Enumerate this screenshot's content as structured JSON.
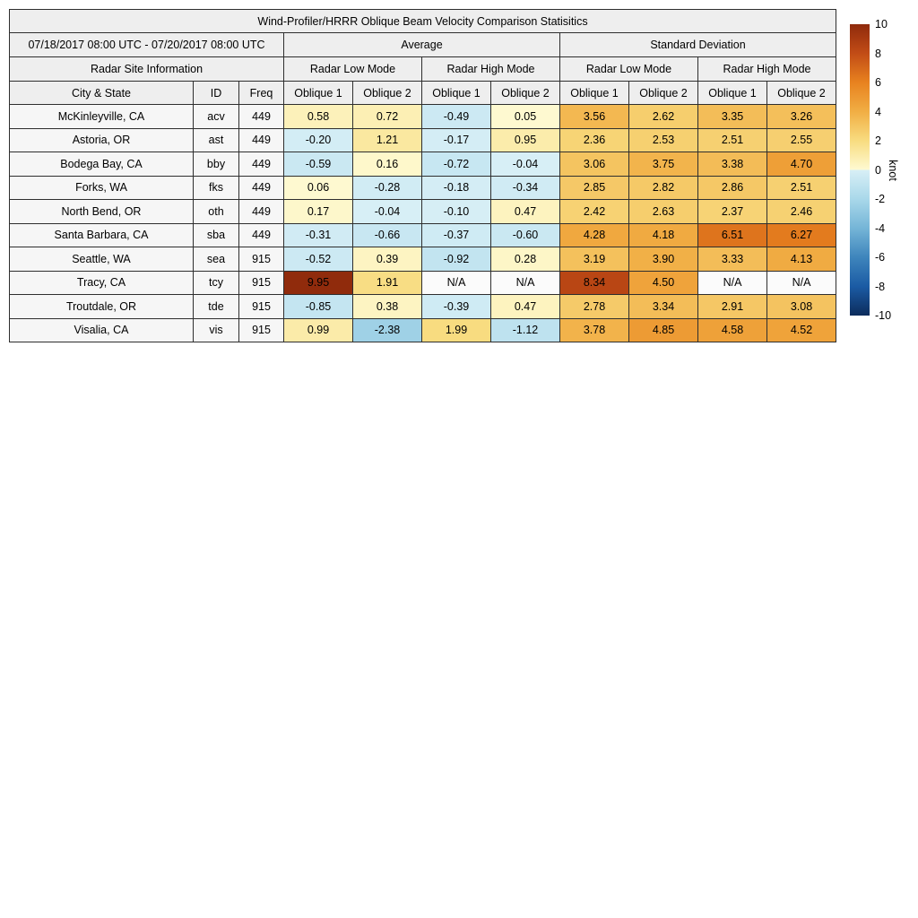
{
  "figure": {
    "background": "#ffffff",
    "grid_color": "#2e2e2e",
    "header_background": "#eeeeee",
    "label_background": "#f6f6f6"
  },
  "chart_data": {
    "type": "table",
    "title": "Wind-Profiler/HRRR Oblique Beam Velocity Comparison Statisitics",
    "date_range": "07/18/2017 08:00 UTC - 07/20/2017 08:00 UTC",
    "section_headers": {
      "site_info": "Radar Site Information",
      "average": "Average",
      "std_dev": "Standard Deviation"
    },
    "mode_headers": [
      "Radar Low Mode",
      "Radar High Mode",
      "Radar Low Mode",
      "Radar High Mode"
    ],
    "column_headers": [
      "City & State",
      "ID",
      "Freq",
      "Oblique 1",
      "Oblique 2",
      "Oblique 1",
      "Oblique 2",
      "Oblique 1",
      "Oblique 2",
      "Oblique 1",
      "Oblique 2"
    ],
    "rows": [
      {
        "city": "McKinleyville, CA",
        "id": "acv",
        "freq": "449",
        "values": [
          "0.58",
          "0.72",
          "-0.49",
          "0.05",
          "3.56",
          "2.62",
          "3.35",
          "3.26"
        ]
      },
      {
        "city": "Astoria, OR",
        "id": "ast",
        "freq": "449",
        "values": [
          "-0.20",
          "1.21",
          "-0.17",
          "0.95",
          "2.36",
          "2.53",
          "2.51",
          "2.55"
        ]
      },
      {
        "city": "Bodega Bay, CA",
        "id": "bby",
        "freq": "449",
        "values": [
          "-0.59",
          "0.16",
          "-0.72",
          "-0.04",
          "3.06",
          "3.75",
          "3.38",
          "4.70"
        ]
      },
      {
        "city": "Forks, WA",
        "id": "fks",
        "freq": "449",
        "values": [
          "0.06",
          "-0.28",
          "-0.18",
          "-0.34",
          "2.85",
          "2.82",
          "2.86",
          "2.51"
        ]
      },
      {
        "city": "North Bend, OR",
        "id": "oth",
        "freq": "449",
        "values": [
          "0.17",
          "-0.04",
          "-0.10",
          "0.47",
          "2.42",
          "2.63",
          "2.37",
          "2.46"
        ]
      },
      {
        "city": "Santa Barbara, CA",
        "id": "sba",
        "freq": "449",
        "values": [
          "-0.31",
          "-0.66",
          "-0.37",
          "-0.60",
          "4.28",
          "4.18",
          "6.51",
          "6.27"
        ]
      },
      {
        "city": "Seattle, WA",
        "id": "sea",
        "freq": "915",
        "values": [
          "-0.52",
          "0.39",
          "-0.92",
          "0.28",
          "3.19",
          "3.90",
          "3.33",
          "4.13"
        ]
      },
      {
        "city": "Tracy, CA",
        "id": "tcy",
        "freq": "915",
        "values": [
          "9.95",
          "1.91",
          "N/A",
          "N/A",
          "8.34",
          "4.50",
          "N/A",
          "N/A"
        ]
      },
      {
        "city": "Troutdale, OR",
        "id": "tde",
        "freq": "915",
        "values": [
          "-0.85",
          "0.38",
          "-0.39",
          "0.47",
          "2.78",
          "3.34",
          "2.91",
          "3.08"
        ]
      },
      {
        "city": "Visalia, CA",
        "id": "vis",
        "freq": "915",
        "values": [
          "0.99",
          "-2.38",
          "1.99",
          "-1.12",
          "3.78",
          "4.85",
          "4.58",
          "4.52"
        ]
      }
    ],
    "na_text": "N/A",
    "colorbar": {
      "label": "knot",
      "ticks": [
        "10",
        "8",
        "6",
        "4",
        "2",
        "0",
        "-2",
        "-4",
        "-6",
        "-8",
        "-10"
      ],
      "max": 10,
      "min": -10
    }
  },
  "colormap": {
    "na_background": "#fbfbfb",
    "warm": [
      [
        0,
        "#FEFAD2"
      ],
      [
        2,
        "#F8DC80"
      ],
      [
        4,
        "#F1AE44"
      ],
      [
        6,
        "#E8821F"
      ],
      [
        8,
        "#C24C16"
      ],
      [
        10,
        "#8F2A0C"
      ]
    ],
    "cool": [
      [
        -10,
        "#0C2C5C"
      ],
      [
        -8,
        "#1B5BA4"
      ],
      [
        -6,
        "#3E85BC"
      ],
      [
        -4,
        "#75B5D7"
      ],
      [
        -2,
        "#A9D8EA"
      ],
      [
        0,
        "#D8EFF6"
      ]
    ]
  }
}
